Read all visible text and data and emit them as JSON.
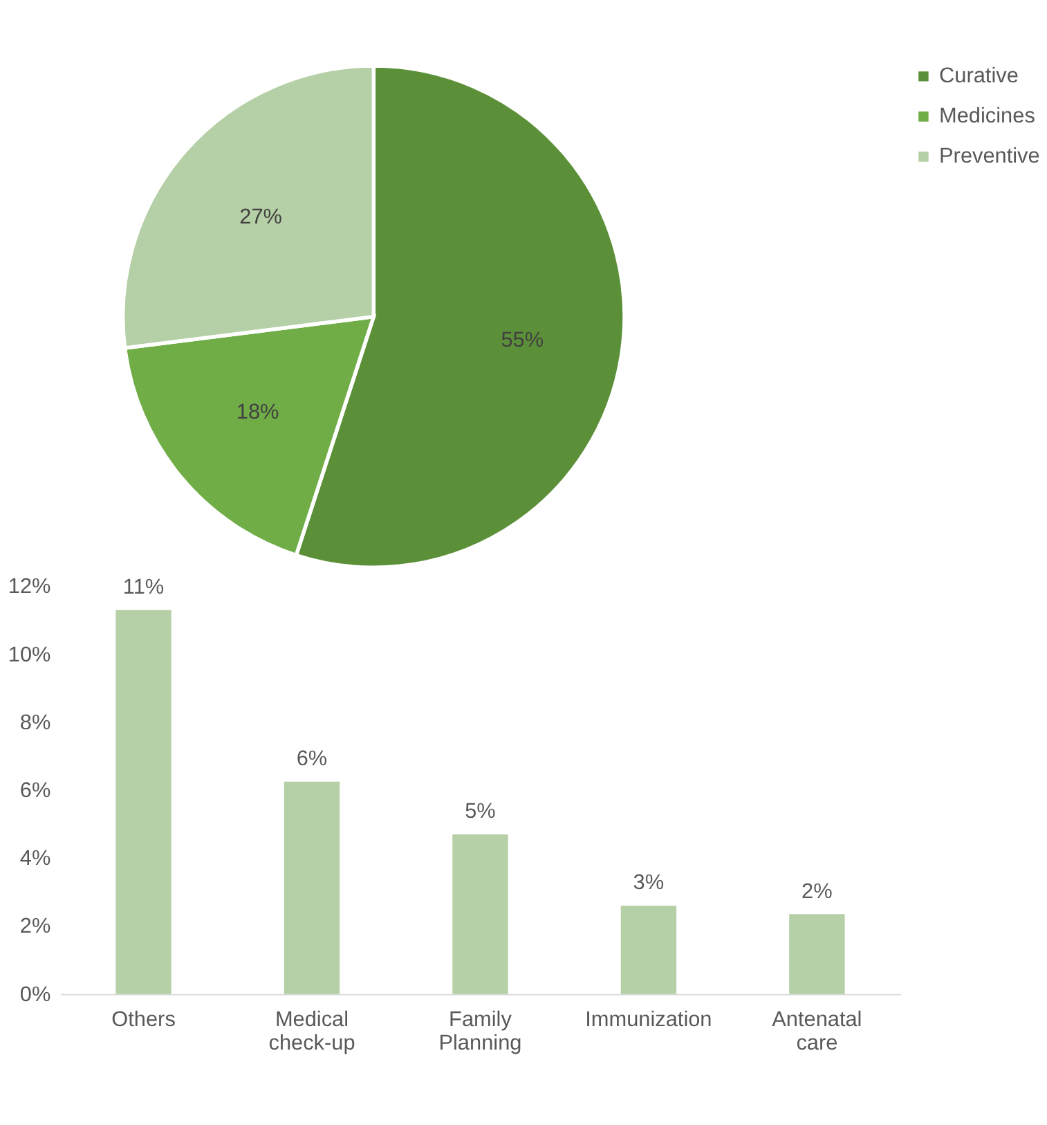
{
  "chart_data": [
    {
      "type": "pie",
      "categories": [
        "Curative",
        "Medicines",
        "Preventive"
      ],
      "values": [
        55,
        18,
        27
      ],
      "colors": [
        "#5b9039",
        "#70ad47",
        "#b5cfa6"
      ],
      "value_labels": [
        "55%",
        "18%",
        "27%"
      ],
      "legend": "right"
    },
    {
      "type": "bar",
      "categories": [
        "Others",
        "Medical check-up",
        "Family Planning",
        "Immunization",
        "Antenatal care"
      ],
      "values": [
        11.3,
        6.25,
        4.7,
        2.6,
        2.35
      ],
      "value_labels": [
        "11%",
        "6%",
        "5%",
        "3%",
        "2%"
      ],
      "color": "#b5cfa6",
      "ylim": [
        0,
        12
      ],
      "yticks": [
        {
          "value": 0,
          "label": "0%"
        },
        {
          "value": 2,
          "label": "2%"
        },
        {
          "value": 4,
          "label": "4%"
        },
        {
          "value": 6,
          "label": "6%"
        },
        {
          "value": 8,
          "label": "8%"
        },
        {
          "value": 10,
          "label": "10%"
        },
        {
          "value": 12,
          "label": "12%"
        }
      ],
      "grid": false
    }
  ]
}
